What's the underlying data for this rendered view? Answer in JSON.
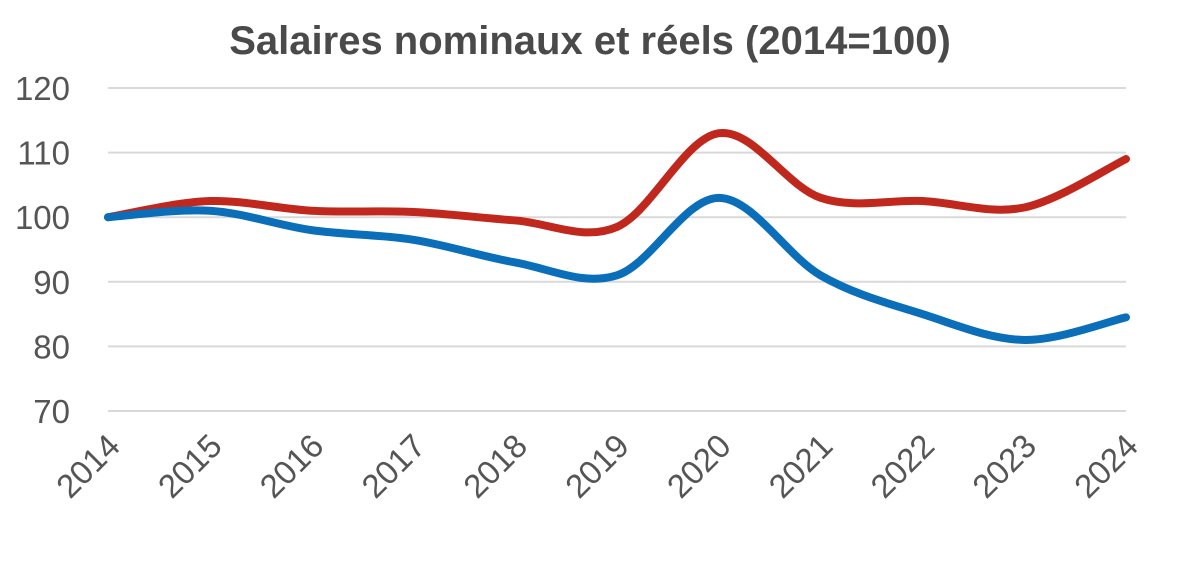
{
  "chart_data": {
    "type": "line",
    "title": "Salaires nominaux et réels (2014=100)",
    "xlabel": "",
    "ylabel": "",
    "categories": [
      "2014",
      "2015",
      "2016",
      "2017",
      "2018",
      "2019",
      "2020",
      "2021",
      "2022",
      "2023",
      "2024"
    ],
    "ylim": [
      70,
      120
    ],
    "yticks": [
      120,
      110,
      100,
      90,
      80,
      70
    ],
    "grid": true,
    "legend": "none",
    "series": [
      {
        "color": "#c0281e",
        "values": [
          100,
          102.5,
          101,
          100.8,
          99.5,
          98.5,
          113,
          103,
          102.5,
          101.5,
          109
        ]
      },
      {
        "color": "#0a6eb9",
        "values": [
          100,
          101,
          98,
          96.5,
          93,
          91,
          103,
          91,
          85,
          81,
          84.5
        ]
      }
    ]
  }
}
